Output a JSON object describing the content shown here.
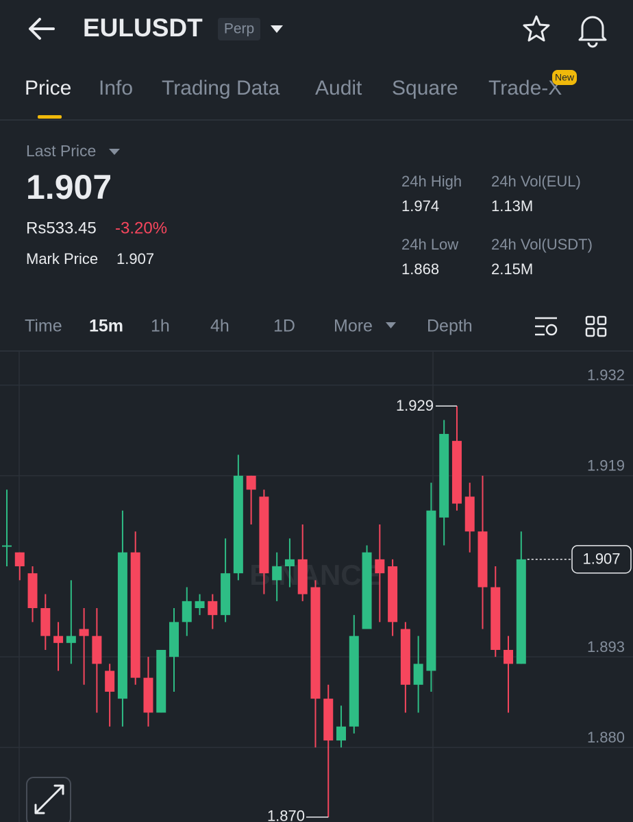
{
  "header": {
    "title": "EULUSDT",
    "badge": "Perp"
  },
  "tabs": [
    "Price",
    "Info",
    "Trading Data",
    "Audit",
    "Square",
    "Trade-X"
  ],
  "new_badge": "New",
  "stats": {
    "last_price_label": "Last Price",
    "last_price": "1.907",
    "local_price": "Rs533.45",
    "change": "-3.20%",
    "mark_price_label": "Mark Price",
    "mark_price": "1.907",
    "items": [
      {
        "label": "24h High",
        "value": "1.974"
      },
      {
        "label": "24h Vol(EUL)",
        "value": "1.13M"
      },
      {
        "label": "24h Low",
        "value": "1.868"
      },
      {
        "label": "24h Vol(USDT)",
        "value": "2.15M"
      }
    ]
  },
  "intervals": [
    "Time",
    "15m",
    "1h",
    "4h",
    "1D",
    "More",
    "Depth"
  ],
  "chart_data": {
    "type": "candlestick",
    "watermark": "BINANCE",
    "up_color": "#2ebd85",
    "down_color": "#f6465d",
    "grid": true,
    "ylim": [
      1.8693,
      1.9369
    ],
    "yticks": [
      1.932,
      1.919,
      1.893,
      {
        "value": 1.88,
        "label": "1.880"
      }
    ],
    "last_price": 1.907,
    "high_marker": 1.929,
    "low_marker": {
      "value": 1.87,
      "label": "1.870"
    },
    "open": [
      1.909,
      1.908,
      1.905,
      1.9,
      1.896,
      1.895,
      1.897,
      1.896,
      1.891,
      1.887,
      1.908,
      1.89,
      1.885,
      1.893,
      1.898,
      1.9,
      1.901,
      1.899,
      1.905,
      1.919,
      1.916,
      1.904,
      1.906,
      1.907,
      1.903,
      1.887,
      1.881,
      1.883,
      1.897,
      1.907,
      1.906,
      1.897,
      1.889,
      1.891,
      1.913,
      1.924,
      1.916,
      1.911,
      1.903,
      1.894,
      1.892
    ],
    "high": [
      1.917,
      1.908,
      1.906,
      1.902,
      1.898,
      1.904,
      1.9,
      1.9,
      1.892,
      1.914,
      1.911,
      1.893,
      1.894,
      1.9,
      1.903,
      1.902,
      1.902,
      1.91,
      1.922,
      1.919,
      1.917,
      1.908,
      1.91,
      1.912,
      1.904,
      1.889,
      1.886,
      1.899,
      1.909,
      1.912,
      1.907,
      1.898,
      1.896,
      1.918,
      1.927,
      1.929,
      1.918,
      1.919,
      1.906,
      1.896,
      1.911
    ],
    "low": [
      1.906,
      1.904,
      1.898,
      1.894,
      1.891,
      1.892,
      1.889,
      1.885,
      1.883,
      1.883,
      1.889,
      1.883,
      1.885,
      1.888,
      1.896,
      1.899,
      1.897,
      1.898,
      1.904,
      1.912,
      1.902,
      1.901,
      1.903,
      1.901,
      1.88,
      1.87,
      1.88,
      1.882,
      1.897,
      1.898,
      1.896,
      1.885,
      1.885,
      1.888,
      1.909,
      1.914,
      1.908,
      1.897,
      1.893,
      1.885,
      1.892
    ],
    "close": [
      1.909,
      1.906,
      1.9,
      1.896,
      1.895,
      1.896,
      1.896,
      1.892,
      1.888,
      1.908,
      1.89,
      1.885,
      1.894,
      1.898,
      1.901,
      1.901,
      1.899,
      1.905,
      1.919,
      1.917,
      1.905,
      1.906,
      1.907,
      1.902,
      1.887,
      1.881,
      1.883,
      1.896,
      1.908,
      1.905,
      1.898,
      1.889,
      1.892,
      1.914,
      1.925,
      1.915,
      1.911,
      1.903,
      1.894,
      1.892,
      1.907
    ]
  }
}
